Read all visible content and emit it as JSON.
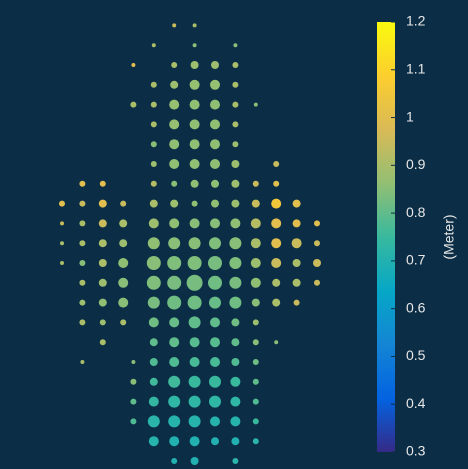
{
  "chart_data": {
    "type": "scatter",
    "colorbar_label": "(Meter)",
    "clim": [
      0.3,
      1.2
    ],
    "cticks": [
      0.3,
      0.4,
      0.5,
      0.6,
      0.7,
      0.8,
      0.9,
      1,
      1.1,
      1.2
    ],
    "colormap": [
      "#352a87",
      "#0363e1",
      "#1485d4",
      "#06a7c6",
      "#38b99e",
      "#92bf73",
      "#d9ba56",
      "#fcce2e",
      "#f9fb0e"
    ],
    "rows": [
      {
        "y": 22,
        "x": [
          11,
          13
        ],
        "sizes": [
          2,
          2
        ],
        "values": [
          0.95,
          0.9
        ]
      },
      {
        "y": 21,
        "x": [
          9,
          13,
          17
        ],
        "sizes": [
          2,
          2,
          2
        ],
        "values": [
          0.9,
          0.85,
          0.85
        ]
      },
      {
        "y": 20,
        "x": [
          7,
          11,
          13,
          15,
          17
        ],
        "sizes": [
          2,
          3,
          4,
          4,
          3
        ],
        "values": [
          1.0,
          0.9,
          0.88,
          0.88,
          0.9
        ]
      },
      {
        "y": 19,
        "x": [
          9,
          11,
          13,
          15,
          17
        ],
        "sizes": [
          3,
          4,
          5,
          5,
          3
        ],
        "values": [
          0.9,
          0.88,
          0.87,
          0.87,
          0.9
        ]
      },
      {
        "y": 18,
        "x": [
          7,
          9,
          11,
          13,
          15,
          17,
          19
        ],
        "sizes": [
          3,
          3,
          5,
          5,
          5,
          3,
          2
        ],
        "values": [
          0.9,
          0.9,
          0.87,
          0.86,
          0.86,
          0.9,
          0.85
        ]
      },
      {
        "y": 17,
        "x": [
          9,
          11,
          13,
          15,
          17
        ],
        "sizes": [
          3,
          5,
          5,
          5,
          3
        ],
        "values": [
          0.9,
          0.87,
          0.86,
          0.86,
          0.9
        ]
      },
      {
        "y": 16,
        "x": [
          9,
          11,
          13,
          15,
          17
        ],
        "sizes": [
          3,
          5,
          5,
          5,
          3
        ],
        "values": [
          0.85,
          0.86,
          0.86,
          0.86,
          0.88
        ]
      },
      {
        "y": 15,
        "x": [
          9,
          11,
          13,
          15,
          17,
          21
        ],
        "sizes": [
          3,
          5,
          5,
          5,
          4,
          3
        ],
        "values": [
          0.88,
          0.86,
          0.86,
          0.86,
          0.88,
          0.95
        ]
      },
      {
        "y": 14,
        "x": [
          2,
          4,
          9,
          11,
          13,
          15,
          17,
          19,
          21
        ],
        "sizes": [
          3,
          3,
          3,
          3,
          4,
          4,
          4,
          3,
          3
        ],
        "values": [
          1.0,
          1.0,
          0.92,
          0.85,
          0.86,
          0.86,
          0.88,
          0.95,
          1.0
        ]
      },
      {
        "y": 13,
        "x": [
          0,
          2,
          4,
          6,
          9,
          11,
          13,
          15,
          17,
          19,
          21,
          23
        ],
        "sizes": [
          3,
          3,
          4,
          3,
          4,
          4,
          3,
          4,
          4,
          4,
          5,
          4
        ],
        "values": [
          1.0,
          0.95,
          1.0,
          0.95,
          0.9,
          0.88,
          0.86,
          0.86,
          0.88,
          0.95,
          1.05,
          1.0
        ]
      },
      {
        "y": 12,
        "x": [
          0,
          2,
          4,
          6,
          9,
          11,
          13,
          15,
          17,
          19,
          21,
          23,
          25
        ],
        "sizes": [
          2,
          3,
          4,
          4,
          5,
          5,
          5,
          5,
          5,
          5,
          5,
          4,
          3
        ],
        "values": [
          0.95,
          0.9,
          0.95,
          0.9,
          0.88,
          0.86,
          0.85,
          0.85,
          0.86,
          0.92,
          1.0,
          1.0,
          1.0
        ]
      },
      {
        "y": 11,
        "x": [
          0,
          2,
          4,
          6,
          9,
          11,
          13,
          15,
          17,
          19,
          21,
          23,
          25
        ],
        "sizes": [
          2,
          3,
          4,
          4,
          6,
          6,
          6,
          6,
          6,
          5,
          5,
          5,
          3
        ],
        "values": [
          0.9,
          0.9,
          0.9,
          0.88,
          0.86,
          0.85,
          0.85,
          0.84,
          0.85,
          0.9,
          1.0,
          0.95,
          0.95
        ]
      },
      {
        "y": 10,
        "x": [
          0,
          2,
          4,
          6,
          9,
          11,
          13,
          15,
          17,
          19,
          21,
          23,
          25
        ],
        "sizes": [
          2,
          3,
          4,
          5,
          7,
          7,
          7,
          7,
          6,
          5,
          5,
          4,
          4
        ],
        "values": [
          0.9,
          0.85,
          0.9,
          0.86,
          0.85,
          0.84,
          0.84,
          0.83,
          0.84,
          0.88,
          0.95,
          0.9,
          0.95
        ]
      },
      {
        "y": 9,
        "x": [
          2,
          4,
          6,
          9,
          11,
          13,
          15,
          17,
          19,
          21,
          23,
          25
        ],
        "sizes": [
          3,
          4,
          5,
          7,
          7,
          8,
          7,
          6,
          5,
          4,
          4,
          3
        ],
        "values": [
          0.9,
          0.88,
          0.85,
          0.84,
          0.83,
          0.83,
          0.82,
          0.83,
          0.86,
          0.9,
          0.9,
          0.95
        ]
      },
      {
        "y": 8,
        "x": [
          2,
          4,
          6,
          9,
          11,
          13,
          15,
          17,
          19,
          21,
          23
        ],
        "sizes": [
          3,
          4,
          5,
          6,
          7,
          7,
          6,
          6,
          4,
          4,
          3
        ],
        "values": [
          0.88,
          0.86,
          0.85,
          0.83,
          0.82,
          0.82,
          0.81,
          0.82,
          0.85,
          0.9,
          0.95
        ]
      },
      {
        "y": 7,
        "x": [
          2,
          4,
          6,
          9,
          11,
          13,
          15,
          17,
          19
        ],
        "sizes": [
          3,
          3,
          3,
          5,
          5,
          6,
          5,
          4,
          3
        ],
        "values": [
          0.9,
          0.88,
          0.9,
          0.82,
          0.81,
          0.8,
          0.8,
          0.82,
          0.88
        ]
      },
      {
        "y": 6,
        "x": [
          4,
          9,
          11,
          13,
          15,
          17,
          19,
          21
        ],
        "sizes": [
          3,
          4,
          5,
          5,
          5,
          4,
          3,
          2
        ],
        "values": [
          0.9,
          0.8,
          0.8,
          0.79,
          0.79,
          0.8,
          0.85,
          0.85
        ]
      },
      {
        "y": 5,
        "x": [
          2,
          7,
          9,
          11,
          13,
          15,
          17,
          19
        ],
        "sizes": [
          2,
          2,
          4,
          5,
          5,
          5,
          4,
          3
        ],
        "values": [
          0.9,
          0.85,
          0.78,
          0.78,
          0.77,
          0.77,
          0.78,
          0.82
        ]
      },
      {
        "y": 4,
        "x": [
          7,
          9,
          11,
          13,
          15,
          17,
          19
        ],
        "sizes": [
          3,
          4,
          6,
          6,
          6,
          5,
          3
        ],
        "values": [
          0.85,
          0.76,
          0.76,
          0.75,
          0.75,
          0.75,
          0.8
        ]
      },
      {
        "y": 3,
        "x": [
          7,
          9,
          11,
          13,
          15,
          17,
          19
        ],
        "sizes": [
          3,
          5,
          6,
          6,
          6,
          5,
          3
        ],
        "values": [
          0.8,
          0.74,
          0.73,
          0.73,
          0.73,
          0.73,
          0.78
        ]
      },
      {
        "y": 2,
        "x": [
          7,
          9,
          11,
          13,
          15,
          17,
          19
        ],
        "sizes": [
          3,
          6,
          6,
          6,
          5,
          5,
          3
        ],
        "values": [
          0.78,
          0.72,
          0.71,
          0.71,
          0.71,
          0.71,
          0.75
        ]
      },
      {
        "y": 1,
        "x": [
          9,
          11,
          13,
          15,
          17,
          19
        ],
        "sizes": [
          5,
          5,
          5,
          4,
          4,
          3
        ],
        "values": [
          0.71,
          0.7,
          0.7,
          0.7,
          0.7,
          0.72
        ]
      },
      {
        "y": 0,
        "x": [
          11,
          13,
          17
        ],
        "sizes": [
          3,
          4,
          3
        ],
        "values": [
          0.7,
          0.7,
          0.72
        ]
      }
    ]
  }
}
